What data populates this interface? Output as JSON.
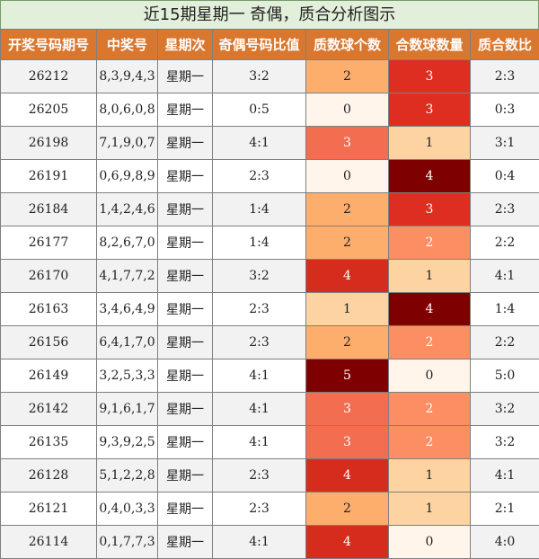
{
  "title": "近15期星期一 奇偶，质合分析图示",
  "headers": [
    "开奖号码期号",
    "中奖号",
    "星期次",
    "奇偶号码比值",
    "质数球个数",
    "合数球数量",
    "质合数比"
  ],
  "heat_colors": {
    "0": "#fff5eb",
    "1": "#fdd3a2",
    "2": "#fdad6c",
    "3_prime": "#f36e50",
    "2_composite": "#fb8e62",
    "3_composite": "#dd2e21",
    "4": "#d62c1e",
    "4_dark": "#7f0000",
    "5": "#7f0000"
  },
  "rows": [
    {
      "issue": "26212",
      "numbers": "8,3,9,4,3",
      "weekday": "星期一",
      "odd_even": "3:2",
      "prime": "2",
      "composite": "3",
      "ratio": "2:3"
    },
    {
      "issue": "26205",
      "numbers": "8,0,6,0,8",
      "weekday": "星期一",
      "odd_even": "0:5",
      "prime": "0",
      "composite": "3",
      "ratio": "0:3"
    },
    {
      "issue": "26198",
      "numbers": "7,1,9,0,7",
      "weekday": "星期一",
      "odd_even": "4:1",
      "prime": "3",
      "composite": "1",
      "ratio": "3:1"
    },
    {
      "issue": "26191",
      "numbers": "0,6,9,8,9",
      "weekday": "星期一",
      "odd_even": "2:3",
      "prime": "0",
      "composite": "4",
      "ratio": "0:4"
    },
    {
      "issue": "26184",
      "numbers": "1,4,2,4,6",
      "weekday": "星期一",
      "odd_even": "1:4",
      "prime": "2",
      "composite": "3",
      "ratio": "2:3"
    },
    {
      "issue": "26177",
      "numbers": "8,2,6,7,0",
      "weekday": "星期一",
      "odd_even": "1:4",
      "prime": "2",
      "composite": "2",
      "ratio": "2:2"
    },
    {
      "issue": "26170",
      "numbers": "4,1,7,7,2",
      "weekday": "星期一",
      "odd_even": "3:2",
      "prime": "4",
      "composite": "1",
      "ratio": "4:1"
    },
    {
      "issue": "26163",
      "numbers": "3,4,6,4,9",
      "weekday": "星期一",
      "odd_even": "2:3",
      "prime": "1",
      "composite": "4",
      "ratio": "1:4"
    },
    {
      "issue": "26156",
      "numbers": "6,4,1,7,0",
      "weekday": "星期一",
      "odd_even": "2:3",
      "prime": "2",
      "composite": "2",
      "ratio": "2:2"
    },
    {
      "issue": "26149",
      "numbers": "3,2,5,3,3",
      "weekday": "星期一",
      "odd_even": "4:1",
      "prime": "5",
      "composite": "0",
      "ratio": "5:0"
    },
    {
      "issue": "26142",
      "numbers": "9,1,6,1,7",
      "weekday": "星期一",
      "odd_even": "4:1",
      "prime": "3",
      "composite": "2",
      "ratio": "3:2"
    },
    {
      "issue": "26135",
      "numbers": "9,3,9,2,5",
      "weekday": "星期一",
      "odd_even": "4:1",
      "prime": "3",
      "composite": "2",
      "ratio": "3:2"
    },
    {
      "issue": "26128",
      "numbers": "5,1,2,2,8",
      "weekday": "星期一",
      "odd_even": "2:3",
      "prime": "4",
      "composite": "1",
      "ratio": "4:1"
    },
    {
      "issue": "26121",
      "numbers": "0,4,0,3,3",
      "weekday": "星期一",
      "odd_even": "2:3",
      "prime": "2",
      "composite": "1",
      "ratio": "2:1"
    },
    {
      "issue": "26114",
      "numbers": "0,1,7,7,3",
      "weekday": "星期一",
      "odd_even": "4:1",
      "prime": "4",
      "composite": "0",
      "ratio": "4:0"
    }
  ]
}
